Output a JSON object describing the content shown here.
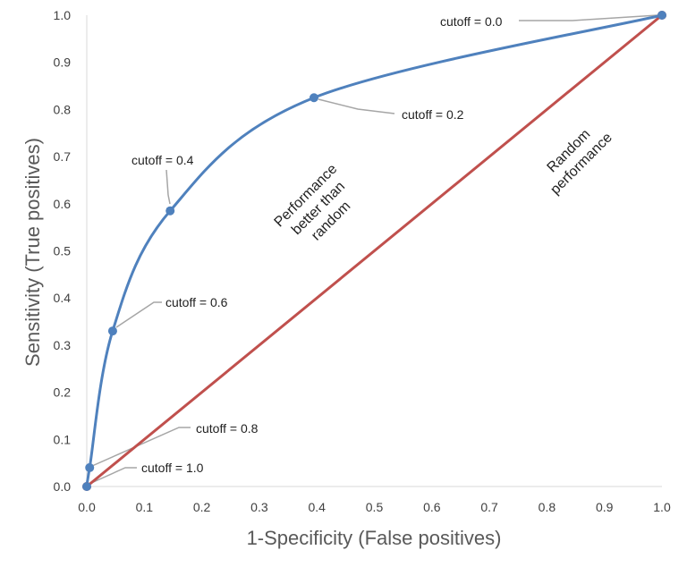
{
  "chart_data": {
    "type": "line",
    "xlabel": "1-Specificity (False positives)",
    "ylabel": "Sensitivity (True positives)",
    "xlim": [
      0.0,
      1.0
    ],
    "ylim": [
      0.0,
      1.0
    ],
    "x_ticks": [
      "0.0",
      "0.1",
      "0.2",
      "0.3",
      "0.4",
      "0.5",
      "0.6",
      "0.7",
      "0.8",
      "0.9",
      "1.0"
    ],
    "y_ticks": [
      "0.0",
      "0.1",
      "0.2",
      "0.3",
      "0.4",
      "0.5",
      "0.6",
      "0.7",
      "0.8",
      "0.9",
      "1.0"
    ],
    "grid": false,
    "series": [
      {
        "color": "#4f81bd",
        "smooth": true,
        "x": [
          0.0,
          0.005,
          0.045,
          0.145,
          0.395,
          1.0
        ],
        "y": [
          0.0,
          0.04,
          0.33,
          0.585,
          0.825,
          1.0
        ]
      },
      {
        "color": "#c0504d",
        "x": [
          0.0,
          1.0
        ],
        "y": [
          0.0,
          1.0
        ]
      }
    ],
    "annotations": [
      {
        "text": "cutoff = 0.0",
        "point": [
          1.0,
          1.0
        ]
      },
      {
        "text": "cutoff = 0.2",
        "point": [
          0.395,
          0.825
        ]
      },
      {
        "text": "cutoff = 0.4",
        "point": [
          0.145,
          0.585
        ]
      },
      {
        "text": "cutoff = 0.6",
        "point": [
          0.045,
          0.33
        ]
      },
      {
        "text": "cutoff = 0.8",
        "point": [
          0.005,
          0.04
        ]
      },
      {
        "text": "cutoff = 1.0",
        "point": [
          0.0,
          0.0
        ]
      }
    ],
    "region_labels": [
      {
        "lines": [
          "Performance",
          "better than",
          "random"
        ]
      },
      {
        "lines": [
          "Random",
          "performance"
        ]
      }
    ]
  }
}
